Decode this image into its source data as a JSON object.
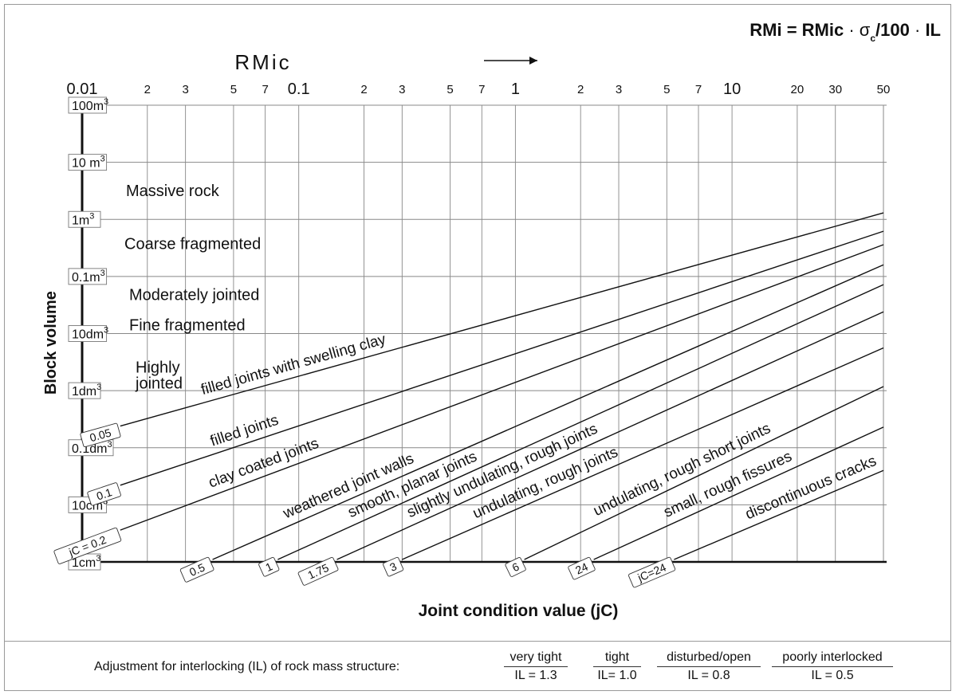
{
  "formula": {
    "left": "RMi = RMic",
    "sigma": "σ",
    "sub": "c",
    "right": "/100",
    "end": "IL"
  },
  "chart_data": {
    "type": "line",
    "x_axis": {
      "label": "RMic",
      "scale": "log",
      "range": [
        0.01,
        50
      ],
      "major_ticks": [
        {
          "value": 0.01,
          "label": "0.01"
        },
        {
          "value": 0.1,
          "label": "0.1"
        },
        {
          "value": 1,
          "label": "1"
        },
        {
          "value": 10,
          "label": "10"
        }
      ],
      "minor_ticks": [
        {
          "value": 0.02,
          "label": "2"
        },
        {
          "value": 0.03,
          "label": "3"
        },
        {
          "value": 0.05,
          "label": "5"
        },
        {
          "value": 0.07,
          "label": "7"
        },
        {
          "value": 0.2,
          "label": "2"
        },
        {
          "value": 0.3,
          "label": "3"
        },
        {
          "value": 0.5,
          "label": "5"
        },
        {
          "value": 0.7,
          "label": "7"
        },
        {
          "value": 2,
          "label": "2"
        },
        {
          "value": 3,
          "label": "3"
        },
        {
          "value": 5,
          "label": "5"
        },
        {
          "value": 7,
          "label": "7"
        },
        {
          "value": 20,
          "label": "20"
        },
        {
          "value": 30,
          "label": "30"
        },
        {
          "value": 50,
          "label": "50"
        }
      ]
    },
    "y_axis": {
      "label": "Block volume",
      "scale": "log",
      "ticks": [
        {
          "value": 100,
          "label": "100m",
          "unit": "3"
        },
        {
          "value": 10,
          "label": "10 m",
          "unit": "3"
        },
        {
          "value": 1,
          "label": "1m",
          "unit": "3"
        },
        {
          "value": 0.1,
          "label": "0.1m",
          "unit": "3"
        },
        {
          "value": 0.01,
          "label": "10dm",
          "unit": "3"
        },
        {
          "value": 0.001,
          "label": "1dm",
          "unit": "3"
        },
        {
          "value": 0.0001,
          "label": "0.1dm",
          "unit": "3"
        },
        {
          "value": 1e-05,
          "label": "10cm",
          "unit": "3"
        },
        {
          "value": 1e-06,
          "label": "1cm",
          "unit": "3"
        }
      ]
    },
    "bottom_label": "Joint condition value  (jC)",
    "zones": [
      {
        "lines": [
          "Massive rock"
        ],
        "vol": 3.2
      },
      {
        "lines": [
          "Coarse fragmented"
        ],
        "vol": 0.38
      },
      {
        "lines": [
          "Moderately jointed"
        ],
        "vol": 0.048
      },
      {
        "lines": [
          "Fine fragmented"
        ],
        "vol": 0.0142
      },
      {
        "lines": [
          "Highly",
          "jointed"
        ],
        "vol": 0.0026
      }
    ],
    "series": [
      {
        "name": "filled joints with swelling clay",
        "tag": "0.05",
        "x_start": 0.015,
        "v_start": 0.00024,
        "v_end": 1.3
      },
      {
        "name": "filled joints",
        "tag": "0.1",
        "x_start": 0.015,
        "v_start": 2.2e-05,
        "v_end": 0.62
      },
      {
        "name": "clay coated joints",
        "tag": "jC = 0.2",
        "x_start": 0.015,
        "v_start": 3.6e-06,
        "v_end": 0.36
      },
      {
        "name": "weathered joint walls",
        "tag": "0.5",
        "x_start": 0.04,
        "v_start": 1.1e-06,
        "v_end": 0.16
      },
      {
        "name": "smooth, planar joints",
        "tag": "1",
        "x_start": 0.08,
        "v_start": 1.1e-06,
        "v_end": 0.072
      },
      {
        "name": "slightly undulating, rough joints",
        "tag": "1.75",
        "x_start": 0.15,
        "v_start": 1.1e-06,
        "v_end": 0.024
      },
      {
        "name": "undulating, rough joints",
        "tag": "3",
        "x_start": 0.3,
        "v_start": 1.1e-06,
        "v_end": 0.0056
      },
      {
        "name": "undulating, rough short joints",
        "tag": "6",
        "x_start": 1.1,
        "v_start": 1.1e-06,
        "v_end": 0.00118
      },
      {
        "name": "small, rough fissures",
        "tag": "24",
        "x_start": 2.3,
        "v_start": 1.1e-06,
        "v_end": 0.00023
      },
      {
        "name": "discontinuous cracks",
        "tag": "jC=24",
        "x_start": 5.4,
        "v_start": 1.1e-06,
        "v_end": 4e-05
      }
    ]
  },
  "interlocking": {
    "caption": "Adjustment for interlocking (IL) of rock mass structure:",
    "columns": [
      {
        "name": "very tight",
        "value": "IL = 1.3"
      },
      {
        "name": "tight",
        "value": "IL= 1.0"
      },
      {
        "name": "disturbed/open",
        "value": "IL = 0.8"
      },
      {
        "name": "poorly interlocked",
        "value": "IL = 0.5"
      }
    ]
  }
}
